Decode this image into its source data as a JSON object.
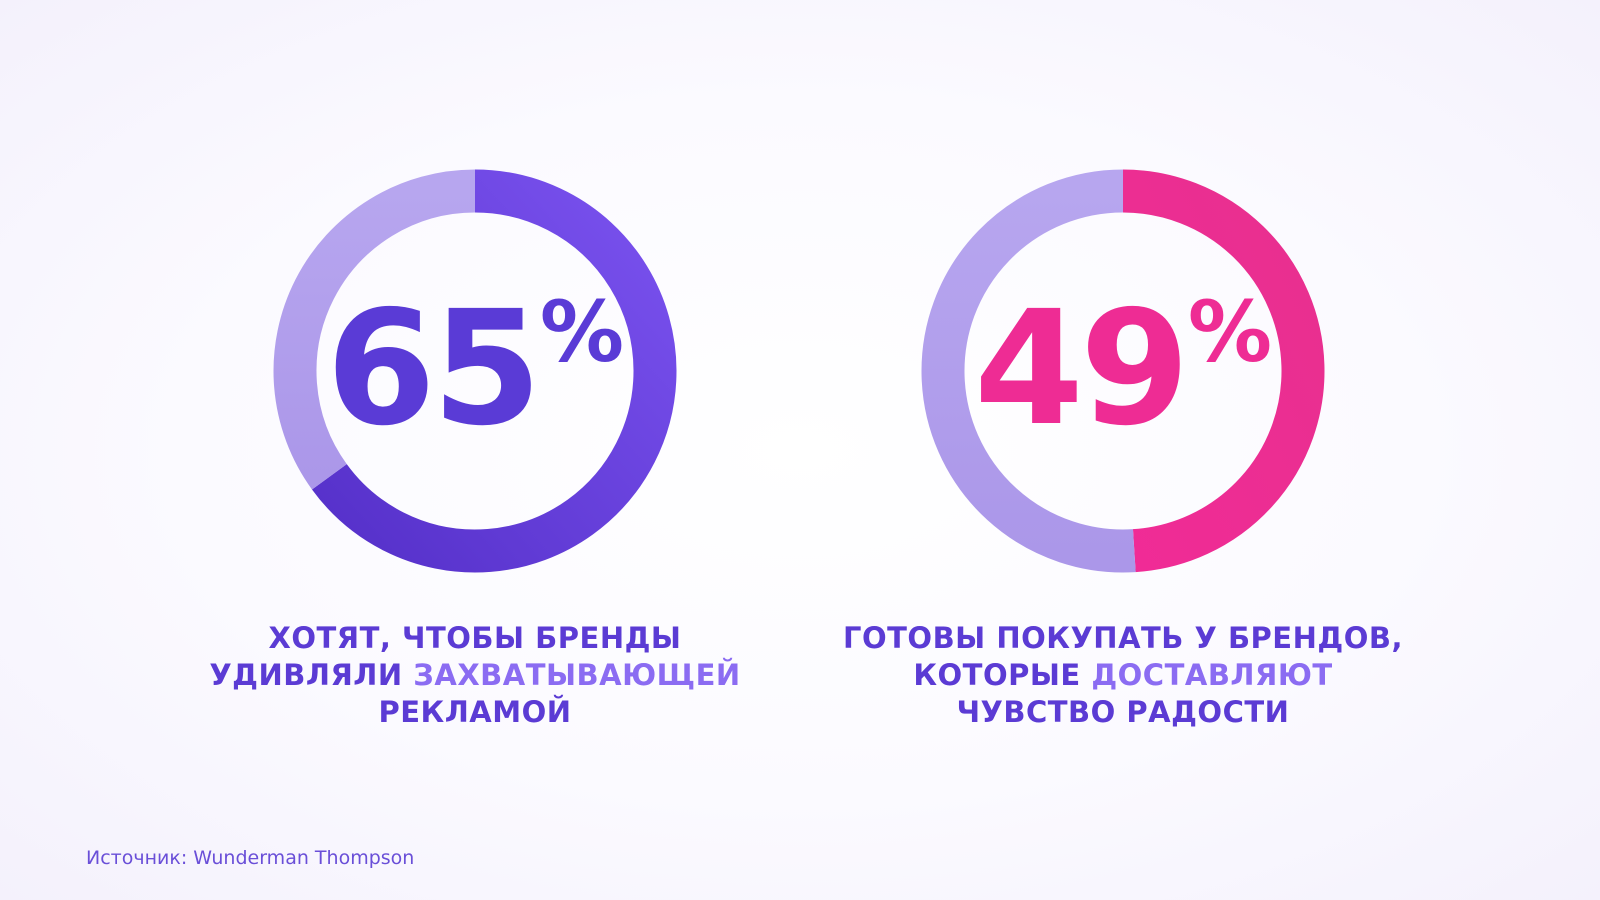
{
  "chart_data": [
    {
      "type": "pie",
      "value": 65,
      "unit": "%",
      "slices": [
        {
          "name": "",
          "value": 65,
          "color": "#6a45e0"
        },
        {
          "name": "",
          "value": 35,
          "color": "#b3a3ee"
        }
      ],
      "caption_lines": [
        [
          {
            "text": "ХОТЯТ, ЧТОБЫ БРЕНДЫ",
            "highlight": false
          }
        ],
        [
          {
            "text": "УДИВЛЯЛИ ",
            "highlight": false
          },
          {
            "text": "ЗАХВАТЫВАЮЩЕЙ",
            "highlight": true
          }
        ],
        [
          {
            "text": "РЕКЛАМОЙ",
            "highlight": false
          }
        ]
      ]
    },
    {
      "type": "pie",
      "value": 49,
      "unit": "%",
      "slices": [
        {
          "name": "",
          "value": 49,
          "color": "#ee2c94"
        },
        {
          "name": "",
          "value": 51,
          "color": "#b3a3ee"
        }
      ],
      "caption_lines": [
        [
          {
            "text": "ГОТОВЫ ПОКУПАТЬ У БРЕНДОВ,",
            "highlight": false
          }
        ],
        [
          {
            "text": "КОТОРЫЕ ",
            "highlight": false
          },
          {
            "text": "ДОСТАВЛЯЮТ",
            "highlight": true
          }
        ],
        [
          {
            "text": "ЧУВСТВО РАДОСТИ",
            "highlight": false
          }
        ]
      ]
    }
  ],
  "source": "Источник: Wunderman Thompson",
  "colors": {
    "purple": "#6a45e0",
    "pink": "#ee2c94",
    "track": "#b3a3ee",
    "caption": "#5b3bd4",
    "caption_highlight": "#8b6cf2"
  }
}
